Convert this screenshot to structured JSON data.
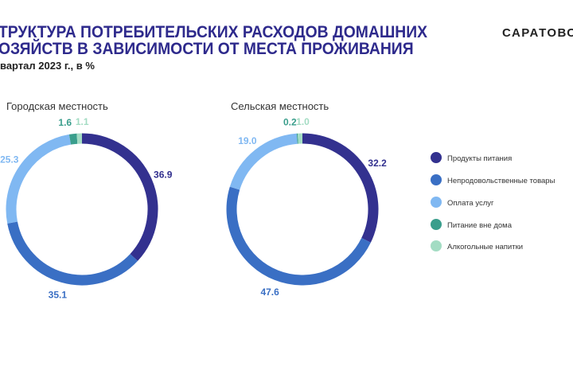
{
  "header": {
    "title_line1": "ТРУКТУРА ПОТРЕБИТЕЛЬСКИХ РАСХОДОВ ДОМАШНИХ",
    "title_line2": "ОЗЯЙСТВ В ЗАВИСИМОСТИ ОТ МЕСТА ПРОЖИВАНИЯ",
    "subtitle": "вартал 2023 г., в %",
    "brand": "САРАТОВС"
  },
  "chart_data": [
    {
      "type": "pie",
      "donut": true,
      "title": "Городская местность",
      "categories": [
        "Продукты питания",
        "Непродовольственные товары",
        "Оплата услуг",
        "Питание вне дома",
        "Алкогольные  напитки"
      ],
      "values": [
        36.9,
        35.1,
        25.3,
        1.6,
        1.1
      ]
    },
    {
      "type": "pie",
      "donut": true,
      "title": "Сельская местность",
      "categories": [
        "Продукты питания",
        "Непродовольственные товары",
        "Оплата услуг",
        "Питание вне дома",
        "Алкогольные  напитки"
      ],
      "values": [
        32.2,
        47.6,
        19.0,
        0.2,
        1.0
      ]
    }
  ],
  "legend": {
    "placement": "right",
    "items": [
      "Продукты питания",
      "Непродовольственные товары",
      "Оплата услуг",
      "Питание вне дома",
      "Алкогольные  напитки"
    ]
  },
  "colors": [
    "#33318f",
    "#3a6fc4",
    "#80b8f2",
    "#3a9e8c",
    "#a3dcc3"
  ]
}
